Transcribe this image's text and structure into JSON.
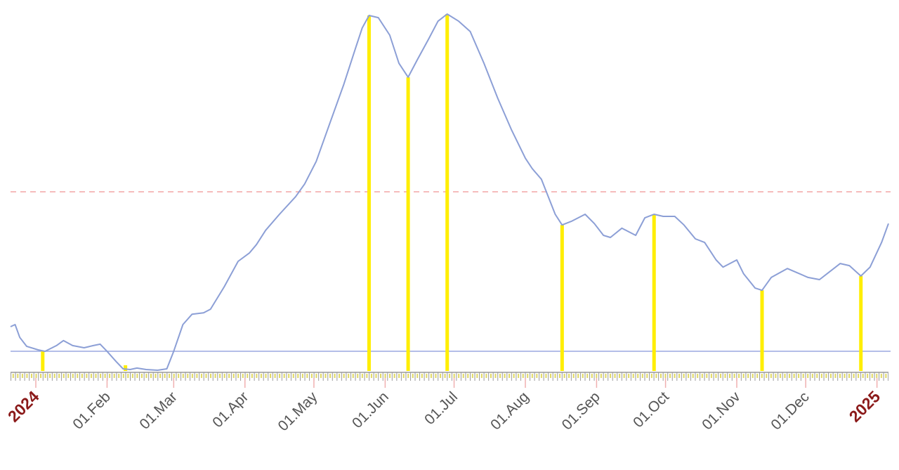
{
  "chart_data": {
    "type": "line",
    "series": [
      {
        "type": "line",
        "color": "#8c9fd6",
        "x": [
          -11,
          -9,
          -7,
          -4,
          1,
          4,
          9,
          12,
          16,
          21,
          25,
          28,
          31,
          35,
          38,
          41,
          44,
          48,
          53,
          57,
          60,
          64,
          68,
          73,
          76,
          82,
          88,
          93,
          96,
          100,
          106,
          113,
          117,
          122,
          128,
          134,
          139,
          142,
          145,
          149,
          154,
          158,
          162,
          166,
          171,
          175,
          179,
          184,
          189,
          195,
          201,
          207,
          213,
          216,
          220,
          223,
          226,
          229,
          233,
          239,
          243,
          247,
          250,
          255,
          258,
          261,
          265,
          269,
          273,
          278,
          282,
          287,
          291,
          296,
          299,
          305,
          308,
          313,
          316,
          320,
          327,
          331,
          336,
          341,
          345,
          350,
          354,
          359,
          363,
          368,
          371
        ],
        "values": [
          12.4,
          13.0,
          9.4,
          6.9,
          5.9,
          5.5,
          7.1,
          8.5,
          7.1,
          6.5,
          7.1,
          7.5,
          5.5,
          2.6,
          0.6,
          0.4,
          0.8,
          0.4,
          0.2,
          0.6,
          5.5,
          13.0,
          15.9,
          16.3,
          17.3,
          23.6,
          30.7,
          33.1,
          35.4,
          39.4,
          43.9,
          48.8,
          52.4,
          58.7,
          69.5,
          80.3,
          90.2,
          96.1,
          99.6,
          99.0,
          94.1,
          86.2,
          82.3,
          87.2,
          93.1,
          98.0,
          100.0,
          98.0,
          95.1,
          86.2,
          76.4,
          67.5,
          59.6,
          56.7,
          53.7,
          48.8,
          43.9,
          40.9,
          41.9,
          43.9,
          41.3,
          38.0,
          37.4,
          40.0,
          39.0,
          38.0,
          42.9,
          43.9,
          43.3,
          43.3,
          40.9,
          37.0,
          36.0,
          31.1,
          29.1,
          31.1,
          27.2,
          23.2,
          22.6,
          26.2,
          28.7,
          27.6,
          26.2,
          25.6,
          27.6,
          30.1,
          29.5,
          26.6,
          29.1,
          36.0,
          41.3
        ]
      },
      {
        "type": "bar",
        "color": "#ffee00",
        "x": [
          3,
          39,
          145,
          162,
          179,
          229,
          269,
          316,
          359
        ],
        "values": [
          5.5,
          1.6,
          99.6,
          82.3,
          100.0,
          40.9,
          43.9,
          22.6,
          26.6
        ]
      }
    ],
    "xlim": [
      -11,
      371
    ],
    "ylim": [
      0,
      100
    ],
    "xticks": [
      {
        "value": 0,
        "label": "2024",
        "color": "#8b1a1a"
      },
      {
        "value": 31,
        "label": "01.Feb"
      },
      {
        "value": 60,
        "label": "01.Mar"
      },
      {
        "value": 91,
        "label": "01.Apr"
      },
      {
        "value": 121,
        "label": "01.May"
      },
      {
        "value": 152,
        "label": "01.Jun"
      },
      {
        "value": 182,
        "label": "01.Jul"
      },
      {
        "value": 213,
        "label": "01.Aug"
      },
      {
        "value": 244,
        "label": "01.Sep"
      },
      {
        "value": 274,
        "label": "01.Oct"
      },
      {
        "value": 305,
        "label": "01.Nov"
      },
      {
        "value": 335,
        "label": "01.Dec"
      },
      {
        "value": 366,
        "label": "2025",
        "color": "#8b1a1a"
      }
    ],
    "hlines": [
      {
        "value": 50.2,
        "color": "#f4a6a6",
        "dashed": true
      },
      {
        "value": 5.5,
        "color": "#9aa8e0",
        "dashed": false
      }
    ]
  }
}
